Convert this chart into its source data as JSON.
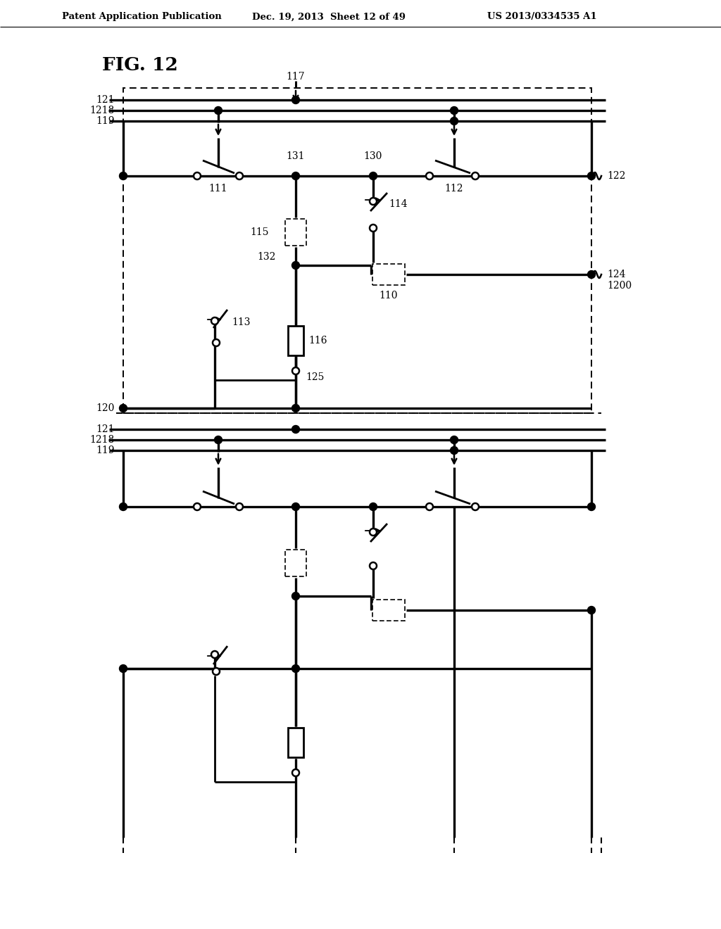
{
  "header_left": "Patent Application Publication",
  "header_center": "Dec. 19, 2013  Sheet 12 of 49",
  "header_right": "US 2013/0334535 A1",
  "fig_label": "FIG. 12",
  "bg_color": "#ffffff"
}
